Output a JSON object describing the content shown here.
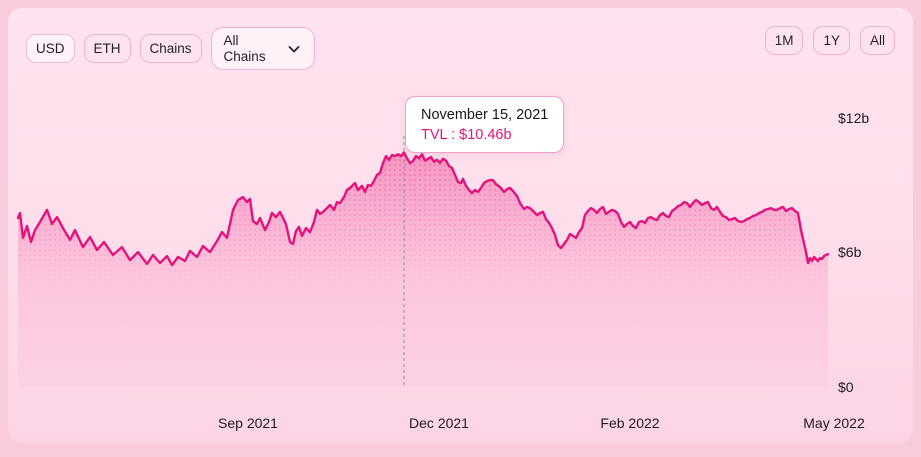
{
  "toolbar": {
    "currency": [
      {
        "label": "USD",
        "active": true
      },
      {
        "label": "ETH",
        "active": false
      }
    ],
    "chains_label": "Chains",
    "chain_selector_label": "All Chains",
    "ranges": [
      "1M",
      "1Y",
      "All"
    ]
  },
  "tooltip": {
    "date": "November 15, 2021",
    "tvl": "TVL : $10.46b"
  },
  "colors": {
    "accent_line": "#e5127a",
    "page_bg": "#f8cbdd",
    "panel_bg_top": "#ffe3f0",
    "panel_bg_bottom": "#fcd4e5",
    "tooltip_border": "#f0a1c4",
    "button_border": "#f0b2cf",
    "text": "#1b1b22",
    "crosshair": "#90909b"
  },
  "chart_data": {
    "type": "area",
    "series_name": "TVL",
    "unit": "billion USD",
    "ylim": [
      0,
      12
    ],
    "grid": false,
    "legend": "none",
    "y_ticks": [
      {
        "label": "$12b",
        "value": 12
      },
      {
        "label": "$6b",
        "value": 6
      },
      {
        "label": "$0",
        "value": 0
      }
    ],
    "x_ticks": [
      "Sep 2021",
      "Dec 2021",
      "Feb 2022",
      "May 2022"
    ],
    "highlight": {
      "date": "November 15, 2021",
      "tvl_billions": 10.46
    },
    "points": [
      [
        0,
        7.54
      ],
      [
        2,
        7.76
      ],
      [
        5,
        6.65
      ],
      [
        9,
        7.18
      ],
      [
        13,
        6.47
      ],
      [
        17,
        7.0
      ],
      [
        22,
        7.36
      ],
      [
        29,
        7.9
      ],
      [
        34,
        7.27
      ],
      [
        39,
        7.58
      ],
      [
        45,
        7.09
      ],
      [
        52,
        6.56
      ],
      [
        57,
        7.0
      ],
      [
        65,
        6.24
      ],
      [
        72,
        6.69
      ],
      [
        79,
        6.11
      ],
      [
        86,
        6.47
      ],
      [
        95,
        5.89
      ],
      [
        104,
        6.24
      ],
      [
        112,
        5.66
      ],
      [
        120,
        6.02
      ],
      [
        129,
        5.49
      ],
      [
        135,
        5.89
      ],
      [
        142,
        5.53
      ],
      [
        149,
        5.84
      ],
      [
        154,
        5.44
      ],
      [
        160,
        5.8
      ],
      [
        167,
        5.62
      ],
      [
        172,
        6.07
      ],
      [
        179,
        5.8
      ],
      [
        185,
        6.29
      ],
      [
        192,
        6.02
      ],
      [
        199,
        6.51
      ],
      [
        204,
        6.91
      ],
      [
        209,
        6.65
      ],
      [
        215,
        7.9
      ],
      [
        220,
        8.34
      ],
      [
        225,
        8.47
      ],
      [
        229,
        8.25
      ],
      [
        232,
        8.39
      ],
      [
        235,
        7.4
      ],
      [
        239,
        7.27
      ],
      [
        242,
        7.54
      ],
      [
        247,
        7.0
      ],
      [
        251,
        7.36
      ],
      [
        254,
        7.76
      ],
      [
        258,
        7.58
      ],
      [
        262,
        7.81
      ],
      [
        265,
        7.54
      ],
      [
        268,
        7.27
      ],
      [
        272,
        6.47
      ],
      [
        275,
        6.38
      ],
      [
        278,
        6.96
      ],
      [
        281,
        7.14
      ],
      [
        284,
        6.74
      ],
      [
        288,
        7.09
      ],
      [
        292,
        6.91
      ],
      [
        296,
        7.36
      ],
      [
        299,
        7.9
      ],
      [
        302,
        7.72
      ],
      [
        305,
        7.81
      ],
      [
        309,
        7.98
      ],
      [
        312,
        8.12
      ],
      [
        316,
        7.9
      ],
      [
        319,
        8.25
      ],
      [
        322,
        8.21
      ],
      [
        326,
        8.47
      ],
      [
        329,
        8.79
      ],
      [
        332,
        8.88
      ],
      [
        335,
        9.01
      ],
      [
        337,
        9.1
      ],
      [
        340,
        8.79
      ],
      [
        344,
        8.97
      ],
      [
        347,
        8.7
      ],
      [
        350,
        9.01
      ],
      [
        353,
        8.97
      ],
      [
        356,
        9.19
      ],
      [
        359,
        9.46
      ],
      [
        362,
        9.55
      ],
      [
        365,
        9.99
      ],
      [
        368,
        10.3
      ],
      [
        371,
        10.13
      ],
      [
        374,
        10.35
      ],
      [
        377,
        10.3
      ],
      [
        380,
        10.38
      ],
      [
        383,
        10.3
      ],
      [
        386,
        10.46
      ],
      [
        389,
        10.2
      ],
      [
        392,
        9.99
      ],
      [
        395,
        10.08
      ],
      [
        398,
        10.3
      ],
      [
        401,
        10.2
      ],
      [
        404,
        10.38
      ],
      [
        407,
        10.1
      ],
      [
        410,
        10.18
      ],
      [
        413,
        10.26
      ],
      [
        416,
        10.05
      ],
      [
        419,
        10.14
      ],
      [
        422,
        10.0
      ],
      [
        425,
        10.18
      ],
      [
        428,
        10.1
      ],
      [
        431,
        9.86
      ],
      [
        434,
        9.77
      ],
      [
        437,
        9.46
      ],
      [
        440,
        9.14
      ],
      [
        443,
        9.1
      ],
      [
        445,
        9.28
      ],
      [
        448,
        8.97
      ],
      [
        451,
        8.79
      ],
      [
        454,
        8.65
      ],
      [
        457,
        8.79
      ],
      [
        460,
        8.7
      ],
      [
        463,
        8.88
      ],
      [
        466,
        9.1
      ],
      [
        469,
        9.19
      ],
      [
        472,
        9.23
      ],
      [
        475,
        9.23
      ],
      [
        478,
        9.05
      ],
      [
        482,
        8.92
      ],
      [
        486,
        8.7
      ],
      [
        489,
        8.83
      ],
      [
        492,
        8.88
      ],
      [
        495,
        8.74
      ],
      [
        499,
        8.52
      ],
      [
        502,
        8.21
      ],
      [
        506,
        7.94
      ],
      [
        509,
        8.03
      ],
      [
        512,
        7.98
      ],
      [
        516,
        7.81
      ],
      [
        519,
        7.67
      ],
      [
        522,
        7.76
      ],
      [
        525,
        7.81
      ],
      [
        528,
        7.49
      ],
      [
        531,
        7.32
      ],
      [
        534,
        7.09
      ],
      [
        537,
        6.78
      ],
      [
        540,
        6.33
      ],
      [
        543,
        6.2
      ],
      [
        546,
        6.38
      ],
      [
        549,
        6.56
      ],
      [
        552,
        6.82
      ],
      [
        555,
        6.74
      ],
      [
        558,
        6.65
      ],
      [
        561,
        6.91
      ],
      [
        564,
        7.09
      ],
      [
        567,
        7.67
      ],
      [
        570,
        7.85
      ],
      [
        573,
        7.98
      ],
      [
        576,
        7.9
      ],
      [
        579,
        7.76
      ],
      [
        582,
        7.94
      ],
      [
        585,
        8.03
      ],
      [
        588,
        7.72
      ],
      [
        591,
        7.81
      ],
      [
        594,
        7.9
      ],
      [
        597,
        7.85
      ],
      [
        600,
        7.72
      ],
      [
        603,
        7.36
      ],
      [
        606,
        7.14
      ],
      [
        609,
        7.27
      ],
      [
        612,
        7.36
      ],
      [
        615,
        7.18
      ],
      [
        618,
        7.09
      ],
      [
        621,
        7.36
      ],
      [
        624,
        7.4
      ],
      [
        627,
        7.32
      ],
      [
        630,
        7.54
      ],
      [
        633,
        7.58
      ],
      [
        636,
        7.49
      ],
      [
        639,
        7.45
      ],
      [
        642,
        7.67
      ],
      [
        645,
        7.76
      ],
      [
        648,
        7.63
      ],
      [
        651,
        7.58
      ],
      [
        654,
        7.85
      ],
      [
        657,
        7.94
      ],
      [
        660,
        8.07
      ],
      [
        663,
        8.12
      ],
      [
        666,
        8.25
      ],
      [
        669,
        8.21
      ],
      [
        672,
        8.03
      ],
      [
        675,
        8.21
      ],
      [
        678,
        8.34
      ],
      [
        681,
        8.25
      ],
      [
        684,
        8.12
      ],
      [
        687,
        8.21
      ],
      [
        690,
        8.25
      ],
      [
        693,
        7.98
      ],
      [
        696,
        7.9
      ],
      [
        699,
        8.03
      ],
      [
        702,
        7.81
      ],
      [
        705,
        7.63
      ],
      [
        708,
        7.58
      ],
      [
        711,
        7.45
      ],
      [
        714,
        7.49
      ],
      [
        717,
        7.54
      ],
      [
        720,
        7.4
      ],
      [
        723,
        7.36
      ],
      [
        726,
        7.4
      ],
      [
        729,
        7.49
      ],
      [
        732,
        7.54
      ],
      [
        735,
        7.63
      ],
      [
        738,
        7.67
      ],
      [
        741,
        7.76
      ],
      [
        744,
        7.81
      ],
      [
        747,
        7.9
      ],
      [
        750,
        7.94
      ],
      [
        753,
        7.98
      ],
      [
        756,
        7.9
      ],
      [
        759,
        7.9
      ],
      [
        762,
        7.98
      ],
      [
        765,
        8.03
      ],
      [
        768,
        7.85
      ],
      [
        771,
        7.94
      ],
      [
        774,
        7.98
      ],
      [
        777,
        7.85
      ],
      [
        780,
        7.76
      ],
      [
        783,
        7.0
      ],
      [
        786,
        6.42
      ],
      [
        788,
        6.02
      ],
      [
        790,
        5.53
      ],
      [
        792,
        5.75
      ],
      [
        794,
        5.62
      ],
      [
        796,
        5.8
      ],
      [
        798,
        5.71
      ],
      [
        800,
        5.62
      ],
      [
        802,
        5.75
      ],
      [
        804,
        5.71
      ],
      [
        806,
        5.84
      ],
      [
        808,
        5.89
      ],
      [
        810,
        5.93
      ]
    ]
  }
}
